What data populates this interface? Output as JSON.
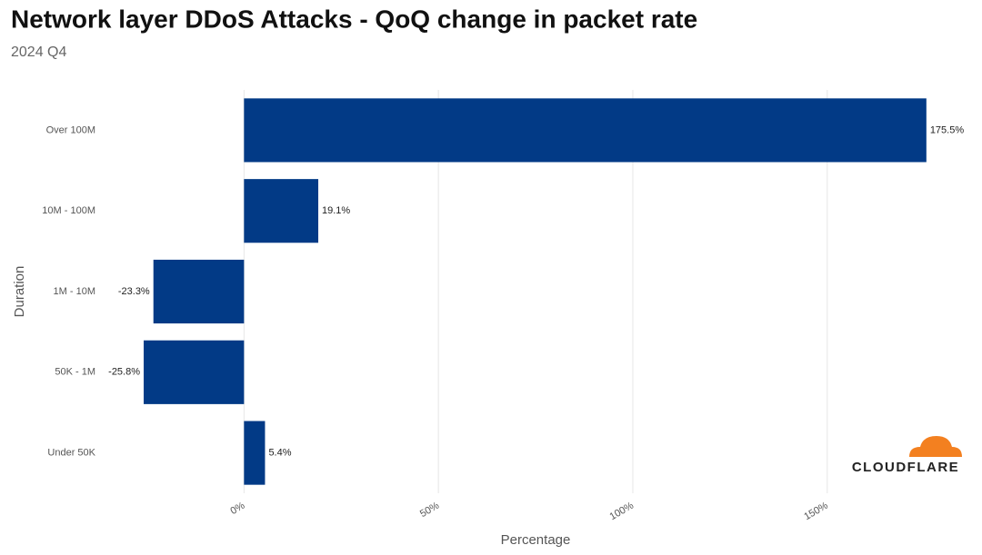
{
  "chart_data": {
    "type": "hbar",
    "title": "Network layer DDoS Attacks - QoQ change in packet rate",
    "subtitle": "2024 Q4",
    "x_label": "Percentage",
    "y_label": "Duration",
    "categories": [
      "Over 100M",
      "10M - 100M",
      "1M - 10M",
      "50K - 1M",
      "Under 50K"
    ],
    "values": [
      175.5,
      19.1,
      -23.3,
      -25.8,
      5.4
    ],
    "value_labels": [
      "175.5%",
      "19.1%",
      "-23.3%",
      "-25.8%",
      "5.4%"
    ],
    "color": "#023a86",
    "xlim": [
      -37.5,
      187
    ],
    "xticks": [
      {
        "value": 0,
        "label": "0%"
      },
      {
        "value": 50,
        "label": "50%"
      },
      {
        "value": 100,
        "label": "100%"
      },
      {
        "value": 150,
        "label": "150%"
      }
    ],
    "grid": true
  },
  "brand": "CLOUDFLARE"
}
